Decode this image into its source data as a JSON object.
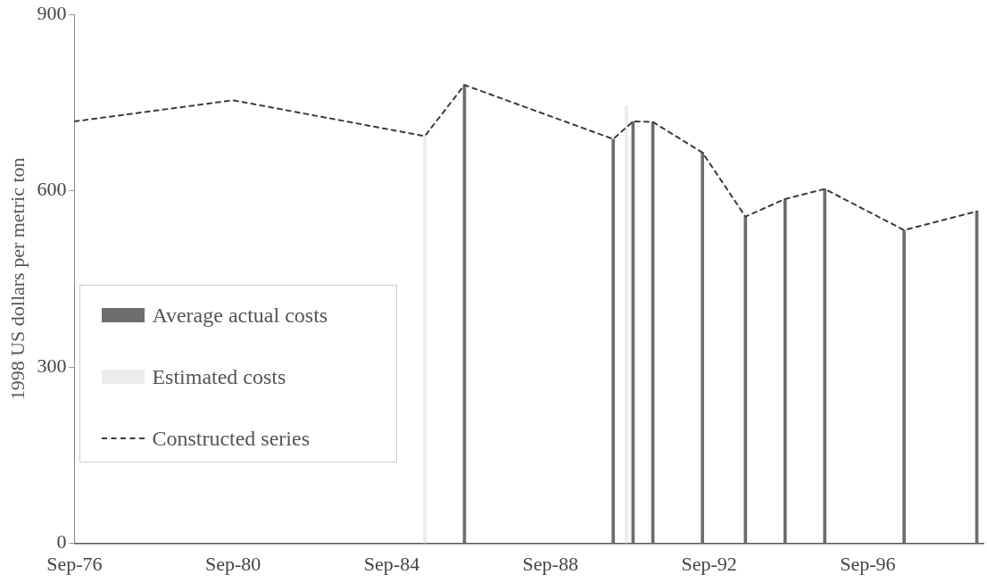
{
  "chart_data": {
    "type": "bar",
    "ylabel": "1998 US dollars per metric ton",
    "xlim": [
      "1976-09",
      "1999-08"
    ],
    "xticks": [
      {
        "value": "1976-09",
        "label": "Sep-76"
      },
      {
        "value": "1980-09",
        "label": "Sep-80"
      },
      {
        "value": "1984-09",
        "label": "Sep-84"
      },
      {
        "value": "1988-09",
        "label": "Sep-88"
      },
      {
        "value": "1992-09",
        "label": "Sep-92"
      },
      {
        "value": "1996-09",
        "label": "Sep-96"
      }
    ],
    "ylim": [
      0,
      900
    ],
    "yticks": [
      0,
      300,
      600,
      900
    ],
    "grid": false,
    "legend": "bottom left",
    "series": [
      {
        "name": "Average actual costs",
        "color": "#6d6d6d",
        "x": [
          "1986-07",
          "1990-04",
          "1990-10",
          "1991-04",
          "1992-07",
          "1993-08",
          "1994-08",
          "1995-08",
          "1997-08",
          "1999-06"
        ],
        "values": [
          780,
          688,
          718,
          717,
          665,
          556,
          586,
          603,
          533,
          565
        ]
      },
      {
        "name": "Estimated costs",
        "color": "#ececec",
        "x": [
          "1985-07",
          "1990-08"
        ],
        "values": [
          693,
          745
        ]
      },
      {
        "name": "Constructed series",
        "type": "line",
        "color": "#3c3c3c",
        "line_style": "dashed",
        "marker": "none",
        "x": [
          "1976-09",
          "1980-09",
          "1985-07",
          "1986-07",
          "1990-04",
          "1990-10",
          "1991-04",
          "1992-07",
          "1993-08",
          "1994-08",
          "1995-08",
          "1997-08",
          "1999-06"
        ],
        "values": [
          718,
          754,
          693,
          780,
          688,
          718,
          717,
          665,
          556,
          586,
          603,
          533,
          565
        ]
      }
    ]
  }
}
